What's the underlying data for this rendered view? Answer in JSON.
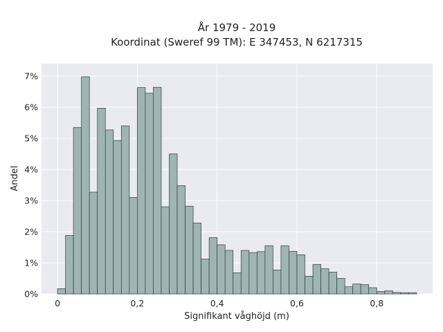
{
  "chart_data": {
    "type": "bar",
    "title_lines": [
      "År 1979 - 2019",
      "Koordinat (Sweref 99 TM): E 347453, N 6217315"
    ],
    "xlabel": "Signifikant våghöjd (m)",
    "ylabel": "Andel",
    "xlim": [
      -0.04,
      0.94
    ],
    "ylim": [
      0,
      7.4
    ],
    "x_ticks": [
      0,
      0.2,
      0.4,
      0.6,
      0.8
    ],
    "x_tick_labels": [
      "0",
      "0,2",
      "0,4",
      "0,6",
      "0,8"
    ],
    "y_ticks": [
      0,
      1,
      2,
      3,
      4,
      5,
      6,
      7
    ],
    "y_tick_labels": [
      "0%",
      "1%",
      "2%",
      "3%",
      "4%",
      "5%",
      "6%",
      "7%"
    ],
    "bin_width": 0.02,
    "bin_starts": [
      0.0,
      0.02,
      0.04,
      0.06,
      0.08,
      0.1,
      0.12,
      0.14,
      0.16,
      0.18,
      0.2,
      0.22,
      0.24,
      0.26,
      0.28,
      0.3,
      0.32,
      0.34,
      0.36,
      0.38,
      0.4,
      0.42,
      0.44,
      0.46,
      0.48,
      0.5,
      0.52,
      0.54,
      0.56,
      0.58,
      0.6,
      0.62,
      0.64,
      0.66,
      0.68,
      0.7,
      0.72,
      0.74,
      0.76,
      0.78,
      0.8,
      0.82,
      0.84,
      0.86,
      0.88
    ],
    "values": [
      0.17,
      1.88,
      5.35,
      6.98,
      3.27,
      5.97,
      5.27,
      4.93,
      5.4,
      3.1,
      6.63,
      6.45,
      6.64,
      2.8,
      4.5,
      3.48,
      2.82,
      2.28,
      1.12,
      1.81,
      1.58,
      1.4,
      0.68,
      1.4,
      1.33,
      1.36,
      1.55,
      0.77,
      1.55,
      1.37,
      1.26,
      0.57,
      0.95,
      0.81,
      0.7,
      0.5,
      0.23,
      0.32,
      0.3,
      0.2,
      0.08,
      0.1,
      0.05,
      0.04,
      0.04
    ],
    "colors": {
      "bar_fill": "#9fb4b4",
      "bar_edge": "#2f3b3b",
      "plot_bg": "#eaeaf2",
      "grid": "#ffffff"
    },
    "grid": true
  }
}
